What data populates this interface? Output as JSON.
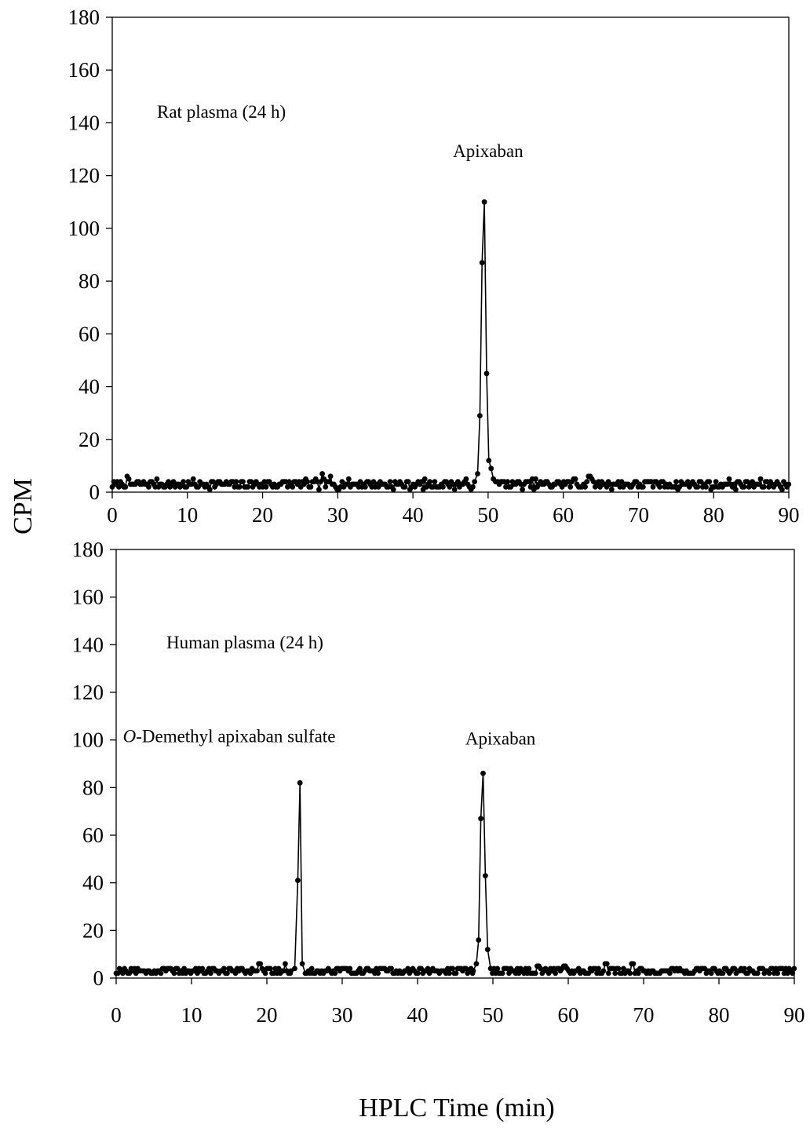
{
  "figure": {
    "y_title": "CPM",
    "x_title": "HPLC Time (min)"
  },
  "chart_data": [
    {
      "type": "scatter",
      "title": "Rat  plasma (24 h)",
      "xlabel": "HPLC Time (min)",
      "ylabel": "CPM",
      "xlim": [
        0,
        90
      ],
      "ylim": [
        0,
        180
      ],
      "x_ticks": [
        0,
        10,
        20,
        30,
        40,
        50,
        60,
        70,
        80,
        90
      ],
      "y_ticks": [
        0,
        20,
        40,
        60,
        80,
        100,
        120,
        140,
        160,
        180
      ],
      "grid": false,
      "line": true,
      "annotations": [
        {
          "text": "Apixaban",
          "x": 50,
          "y": 127
        }
      ],
      "peaks": [
        {
          "x": [
            48.2,
            48.6,
            48.9,
            49.2,
            49.5,
            49.8,
            50.1,
            50.4,
            50.7,
            51.0
          ],
          "y": [
            4,
            7,
            29,
            87,
            110,
            45,
            12,
            9,
            5,
            4
          ]
        }
      ],
      "baseline": {
        "range": [
          0,
          90
        ],
        "base": 3,
        "amplitude": 1.6,
        "seed": 7,
        "bumps": [
          {
            "x": 2,
            "y": 6
          },
          {
            "x": 27.9,
            "y": 7
          },
          {
            "x": 29,
            "y": 6
          },
          {
            "x": 63.5,
            "y": 6
          },
          {
            "x": 61.5,
            "y": 5
          }
        ]
      }
    },
    {
      "type": "scatter",
      "title": "Human  plasma (24 h)",
      "xlabel": "HPLC Time (min)",
      "ylabel": "CPM",
      "xlim": [
        0,
        90
      ],
      "ylim": [
        0,
        180
      ],
      "x_ticks": [
        0,
        10,
        20,
        30,
        40,
        50,
        60,
        70,
        80,
        90
      ],
      "y_ticks": [
        0,
        20,
        40,
        60,
        80,
        100,
        120,
        140,
        160,
        180
      ],
      "grid": false,
      "line": true,
      "annotations": [
        {
          "text_italic": "O",
          "text": "-Demethyl apixaban sulfate",
          "x": 15,
          "y": 99
        },
        {
          "text": "Apixaban",
          "x": 51,
          "y": 98
        }
      ],
      "peaks": [
        {
          "x": [
            23.2,
            23.7,
            24.1,
            24.4,
            24.7,
            25.1
          ],
          "y": [
            3,
            4,
            41,
            82,
            6,
            2
          ]
        },
        {
          "x": [
            47.4,
            47.8,
            48.1,
            48.4,
            48.7,
            49.0,
            49.3,
            49.7
          ],
          "y": [
            3,
            6,
            16,
            67,
            86,
            43,
            12,
            4
          ]
        }
      ],
      "baseline": {
        "range": [
          0,
          90
        ],
        "base": 3,
        "amplitude": 1.5,
        "seed": 19,
        "bumps": [
          {
            "x": 19,
            "y": 6
          },
          {
            "x": 22.5,
            "y": 6
          },
          {
            "x": 65,
            "y": 6
          },
          {
            "x": 68.5,
            "y": 6
          },
          {
            "x": 56,
            "y": 5
          },
          {
            "x": 59.5,
            "y": 5
          }
        ]
      }
    }
  ]
}
